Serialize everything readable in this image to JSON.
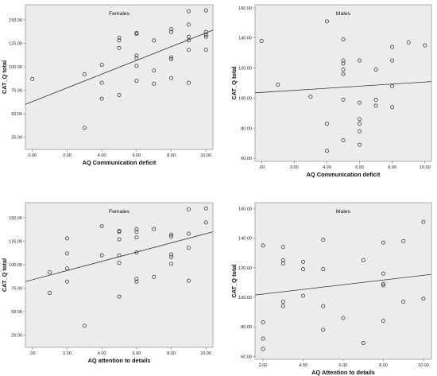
{
  "chart_data": [
    {
      "type": "scatter",
      "title": "Females",
      "xlabel": "AQ Communication deficit",
      "ylabel": "CAT_Q total",
      "xlim": [
        -0.4,
        10.4
      ],
      "ylim": [
        12,
        166
      ],
      "xticks": [
        "0.00",
        "2.00",
        "4.00",
        "6.00",
        "8.00",
        "10.00"
      ],
      "xtick_values": [
        0,
        2,
        4,
        6,
        8,
        10
      ],
      "yticks": [
        "25.00",
        "50.00",
        "75.00",
        "100.00",
        "125.00",
        "150.00"
      ],
      "ytick_values": [
        25,
        50,
        75,
        100,
        125,
        150
      ],
      "fit_line": {
        "x": [
          -0.4,
          10.4
        ],
        "y": [
          60,
          139
        ]
      },
      "points": [
        {
          "x": 0,
          "y": 87
        },
        {
          "x": 3,
          "y": 92
        },
        {
          "x": 3,
          "y": 35
        },
        {
          "x": 4,
          "y": 102
        },
        {
          "x": 4,
          "y": 83
        },
        {
          "x": 4,
          "y": 66
        },
        {
          "x": 5,
          "y": 131
        },
        {
          "x": 5,
          "y": 128
        },
        {
          "x": 5,
          "y": 120
        },
        {
          "x": 5,
          "y": 70
        },
        {
          "x": 6,
          "y": 136
        },
        {
          "x": 6,
          "y": 135
        },
        {
          "x": 6,
          "y": 112
        },
        {
          "x": 6,
          "y": 109
        },
        {
          "x": 6,
          "y": 101
        },
        {
          "x": 6,
          "y": 85
        },
        {
          "x": 7,
          "y": 128
        },
        {
          "x": 7,
          "y": 96
        },
        {
          "x": 7,
          "y": 82
        },
        {
          "x": 8,
          "y": 140
        },
        {
          "x": 8,
          "y": 137
        },
        {
          "x": 8,
          "y": 110
        },
        {
          "x": 8,
          "y": 108
        },
        {
          "x": 8,
          "y": 88
        },
        {
          "x": 9,
          "y": 159
        },
        {
          "x": 9,
          "y": 145
        },
        {
          "x": 9,
          "y": 132
        },
        {
          "x": 9,
          "y": 128
        },
        {
          "x": 9,
          "y": 118
        },
        {
          "x": 9,
          "y": 83
        },
        {
          "x": 10,
          "y": 160
        },
        {
          "x": 10,
          "y": 137
        },
        {
          "x": 10,
          "y": 134
        },
        {
          "x": 10,
          "y": 132
        },
        {
          "x": 10,
          "y": 118
        }
      ]
    },
    {
      "type": "scatter",
      "title": "Males",
      "xlabel": "AQ Communication deficit",
      "ylabel": "CAT_Q total",
      "xlim": [
        -0.4,
        10.4
      ],
      "ylim": [
        58,
        162
      ],
      "xticks": [
        ".00",
        "2.00",
        "4.00",
        "6.00",
        "8.00",
        "10.00"
      ],
      "xtick_values": [
        0,
        2,
        4,
        6,
        8,
        10
      ],
      "yticks": [
        "60.00",
        "80.00",
        "100.00",
        "120.00",
        "140.00",
        "160.00"
      ],
      "ytick_values": [
        60,
        80,
        100,
        120,
        140,
        160
      ],
      "fit_line": {
        "x": [
          -0.4,
          10.4
        ],
        "y": [
          103.5,
          111
        ]
      },
      "points": [
        {
          "x": 0,
          "y": 138
        },
        {
          "x": 1,
          "y": 109
        },
        {
          "x": 3,
          "y": 101
        },
        {
          "x": 4,
          "y": 151
        },
        {
          "x": 4,
          "y": 83
        },
        {
          "x": 4,
          "y": 65
        },
        {
          "x": 5,
          "y": 139
        },
        {
          "x": 5,
          "y": 125
        },
        {
          "x": 5,
          "y": 123
        },
        {
          "x": 5,
          "y": 119
        },
        {
          "x": 5,
          "y": 116
        },
        {
          "x": 5,
          "y": 99
        },
        {
          "x": 5,
          "y": 72
        },
        {
          "x": 6,
          "y": 125
        },
        {
          "x": 6,
          "y": 97
        },
        {
          "x": 6,
          "y": 86
        },
        {
          "x": 6,
          "y": 83
        },
        {
          "x": 6,
          "y": 78
        },
        {
          "x": 6,
          "y": 69
        },
        {
          "x": 7,
          "y": 119
        },
        {
          "x": 7,
          "y": 99
        },
        {
          "x": 7,
          "y": 95
        },
        {
          "x": 8,
          "y": 134
        },
        {
          "x": 8,
          "y": 125
        },
        {
          "x": 8,
          "y": 108
        },
        {
          "x": 8,
          "y": 94
        },
        {
          "x": 9,
          "y": 137
        },
        {
          "x": 10,
          "y": 135
        }
      ]
    },
    {
      "type": "scatter",
      "title": "Females",
      "xlabel": "AQ attention to details",
      "ylabel": "CAT_Q total",
      "xlim": [
        -0.4,
        10.4
      ],
      "ylim": [
        12,
        166
      ],
      "xticks": [
        ".00",
        "2.00",
        "4.00",
        "6.00",
        "8.00",
        "10.00"
      ],
      "xtick_values": [
        0,
        2,
        4,
        6,
        8,
        10
      ],
      "yticks": [
        "25.00",
        "50.00",
        "75.00",
        "100.00",
        "125.00",
        "150.00"
      ],
      "ytick_values": [
        25,
        50,
        75,
        100,
        125,
        150
      ],
      "fit_line": {
        "x": [
          -0.4,
          10.4
        ],
        "y": [
          82,
          135
        ]
      },
      "points": [
        {
          "x": 1,
          "y": 92
        },
        {
          "x": 1,
          "y": 70
        },
        {
          "x": 2,
          "y": 128
        },
        {
          "x": 2,
          "y": 112
        },
        {
          "x": 2,
          "y": 96
        },
        {
          "x": 2,
          "y": 82
        },
        {
          "x": 3,
          "y": 35
        },
        {
          "x": 4,
          "y": 141
        },
        {
          "x": 4,
          "y": 110
        },
        {
          "x": 5,
          "y": 136
        },
        {
          "x": 5,
          "y": 135
        },
        {
          "x": 5,
          "y": 127
        },
        {
          "x": 5,
          "y": 110
        },
        {
          "x": 5,
          "y": 102
        },
        {
          "x": 5,
          "y": 66
        },
        {
          "x": 6,
          "y": 138
        },
        {
          "x": 6,
          "y": 135
        },
        {
          "x": 6,
          "y": 129
        },
        {
          "x": 6,
          "y": 113
        },
        {
          "x": 6,
          "y": 85
        },
        {
          "x": 6,
          "y": 82
        },
        {
          "x": 7,
          "y": 138
        },
        {
          "x": 7,
          "y": 87
        },
        {
          "x": 8,
          "y": 132
        },
        {
          "x": 8,
          "y": 130
        },
        {
          "x": 8,
          "y": 111
        },
        {
          "x": 8,
          "y": 108
        },
        {
          "x": 8,
          "y": 101
        },
        {
          "x": 9,
          "y": 159
        },
        {
          "x": 9,
          "y": 133
        },
        {
          "x": 9,
          "y": 118
        },
        {
          "x": 9,
          "y": 83
        },
        {
          "x": 10,
          "y": 160
        },
        {
          "x": 10,
          "y": 145
        }
      ]
    },
    {
      "type": "scatter",
      "title": "Males",
      "xlabel": "AQ Attention to details",
      "ylabel": "CAT_Q total",
      "xlim": [
        1.6,
        10.4
      ],
      "ylim": [
        58,
        164
      ],
      "xticks": [
        "2.00",
        "4.00",
        "6.00",
        "8.00",
        "10.00"
      ],
      "xtick_values": [
        2,
        4,
        6,
        8,
        10
      ],
      "yticks": [
        "60.00",
        "80.00",
        "100.00",
        "120.00",
        "140.00",
        "160.00"
      ],
      "ytick_values": [
        60,
        80,
        100,
        120,
        140,
        160
      ],
      "fit_line": {
        "x": [
          1.6,
          10.4
        ],
        "y": [
          101.5,
          115.5
        ]
      },
      "points": [
        {
          "x": 2,
          "y": 135
        },
        {
          "x": 2,
          "y": 83
        },
        {
          "x": 2,
          "y": 72
        },
        {
          "x": 2,
          "y": 65
        },
        {
          "x": 3,
          "y": 134
        },
        {
          "x": 3,
          "y": 125
        },
        {
          "x": 3,
          "y": 123
        },
        {
          "x": 3,
          "y": 97
        },
        {
          "x": 3,
          "y": 94
        },
        {
          "x": 4,
          "y": 124
        },
        {
          "x": 4,
          "y": 119
        },
        {
          "x": 4,
          "y": 101
        },
        {
          "x": 5,
          "y": 139
        },
        {
          "x": 5,
          "y": 119
        },
        {
          "x": 5,
          "y": 94
        },
        {
          "x": 5,
          "y": 78
        },
        {
          "x": 6,
          "y": 86
        },
        {
          "x": 7,
          "y": 125
        },
        {
          "x": 7,
          "y": 69
        },
        {
          "x": 8,
          "y": 137
        },
        {
          "x": 8,
          "y": 116
        },
        {
          "x": 8,
          "y": 109
        },
        {
          "x": 8,
          "y": 108
        },
        {
          "x": 8,
          "y": 84
        },
        {
          "x": 9,
          "y": 138
        },
        {
          "x": 9,
          "y": 97
        },
        {
          "x": 10,
          "y": 151
        },
        {
          "x": 10,
          "y": 99
        }
      ]
    }
  ]
}
